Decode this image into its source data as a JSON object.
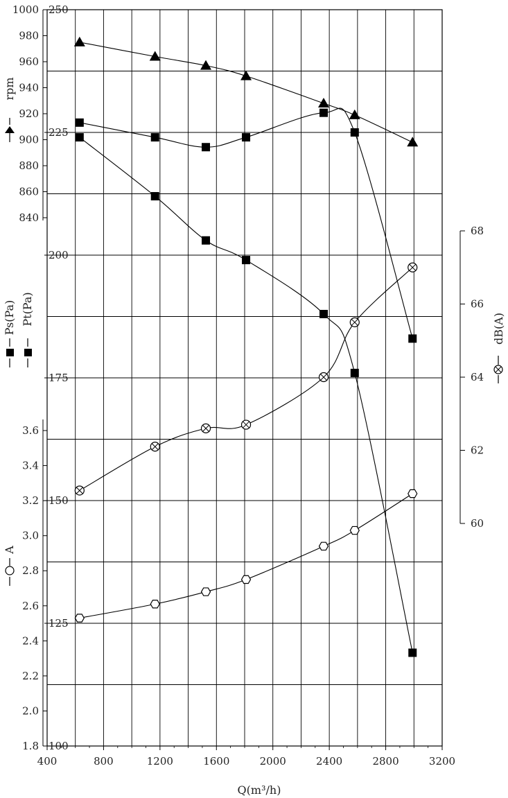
{
  "chart_data": {
    "type": "line",
    "xlabel": "Q(m³/h)",
    "x_ticks": [
      "400",
      "800",
      "1200",
      "1600",
      "2000",
      "2400",
      "2800",
      "3200"
    ],
    "xlim": [
      400,
      3200
    ],
    "axes": {
      "rpm": {
        "label": "rpm",
        "ticks": [
          "1000",
          "980",
          "960",
          "940",
          "920",
          "900",
          "880",
          "860",
          "840"
        ],
        "range": [
          833.5,
          1000
        ]
      },
      "pressure": {
        "labels": [
          "Ps(Pa)",
          "Pt(Pa)"
        ],
        "ticks": [
          "250",
          "225",
          "200",
          "175",
          "150",
          "125",
          "100"
        ],
        "range": [
          100,
          250
        ]
      },
      "current": {
        "label": "A",
        "ticks": [
          "3.6",
          "3.4",
          "3.2",
          "3.0",
          "2.8",
          "2.6",
          "2.4",
          "2.2",
          "2.0",
          "1.8"
        ],
        "range": [
          1.8,
          3.68
        ]
      },
      "noise": {
        "label": "dB(A)",
        "ticks": [
          "68",
          "66",
          "64",
          "62",
          "60"
        ],
        "range": [
          60,
          68
        ]
      }
    },
    "series": [
      {
        "name": "rpm",
        "axis": "rpm",
        "marker": "triangle",
        "x": [
          630,
          1165,
          1525,
          1810,
          2360,
          2580,
          2990
        ],
        "y": [
          975,
          964,
          957,
          949,
          928,
          919,
          898
        ]
      },
      {
        "name": "Pt(Pa)",
        "axis": "pressure",
        "marker": "square",
        "x": [
          630,
          1165,
          1525,
          1810,
          2360,
          2580,
          2990
        ],
        "y": [
          227,
          224,
          222,
          224,
          229,
          225,
          183
        ]
      },
      {
        "name": "Ps(Pa)",
        "axis": "pressure",
        "marker": "square",
        "x": [
          630,
          1165,
          1525,
          1810,
          2360,
          2580,
          2990
        ],
        "y": [
          224,
          212,
          203,
          199,
          188,
          176,
          119
        ]
      },
      {
        "name": "dB(A)",
        "axis": "noise",
        "marker": "circle-x",
        "x": [
          630,
          1165,
          1525,
          1810,
          2360,
          2580,
          2990
        ],
        "y": [
          60.9,
          62.1,
          62.6,
          62.7,
          64.0,
          65.5,
          67.0
        ]
      },
      {
        "name": "A",
        "axis": "current",
        "marker": "hexagon",
        "x": [
          630,
          1165,
          1525,
          1810,
          2360,
          2580,
          2990
        ],
        "y": [
          2.53,
          2.61,
          2.68,
          2.75,
          2.94,
          3.03,
          3.24
        ]
      }
    ],
    "grid": true,
    "legend": "left and right axes"
  }
}
